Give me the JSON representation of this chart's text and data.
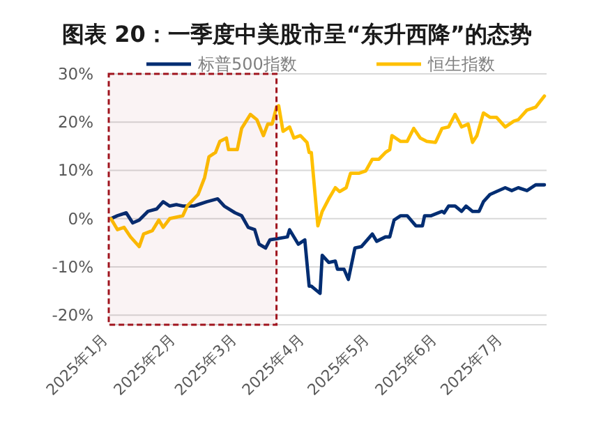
{
  "chart_data": {
    "type": "line",
    "title": "图表 20：一季度中美股市呈“东升西降”的态势",
    "xlim": [
      "2025-01-01",
      "2025-07-21"
    ],
    "ylim": [
      -22,
      30
    ],
    "xticks": [
      {
        "value": "2025-01-01",
        "label": "2025年1月"
      },
      {
        "value": "2025-02-01",
        "label": "2025年2月"
      },
      {
        "value": "2025-03-01",
        "label": "2025年3月"
      },
      {
        "value": "2025-04-01",
        "label": "2025年4月"
      },
      {
        "value": "2025-05-01",
        "label": "2025年5月"
      },
      {
        "value": "2025-06-01",
        "label": "2025年6月"
      },
      {
        "value": "2025-07-01",
        "label": "2025年7月"
      }
    ],
    "yticks": [
      {
        "value": -20,
        "label": "-20%"
      },
      {
        "value": -10,
        "label": "-10%"
      },
      {
        "value": 0,
        "label": "0%"
      },
      {
        "value": 10,
        "label": "10%"
      },
      {
        "value": 20,
        "label": "20%"
      },
      {
        "value": 30,
        "label": "30%"
      }
    ],
    "grid": "y",
    "legend": "top",
    "marker": "none",
    "line_style": "solid",
    "bands": [
      {
        "axis": "x",
        "from": "2025-01-01",
        "to": "2025-03-19",
        "color": "#a0141e"
      }
    ],
    "series": [
      {
        "name": "标普500指数",
        "color": "#002d72",
        "x": [
          "2025-01-02",
          "2025-01-05",
          "2025-01-09",
          "2025-01-12",
          "2025-01-15",
          "2025-01-19",
          "2025-01-23",
          "2025-01-26",
          "2025-01-29",
          "2025-02-01",
          "2025-02-04",
          "2025-02-09",
          "2025-02-11",
          "2025-02-15",
          "2025-02-20",
          "2025-02-23",
          "2025-02-28",
          "2025-03-03",
          "2025-03-06",
          "2025-03-09",
          "2025-03-11",
          "2025-03-14",
          "2025-03-16",
          "2025-03-20",
          "2025-03-24",
          "2025-03-25",
          "2025-03-29",
          "2025-04-01",
          "2025-04-03",
          "2025-04-04",
          "2025-04-08",
          "2025-04-09",
          "2025-04-12",
          "2025-04-15",
          "2025-04-16",
          "2025-04-19",
          "2025-04-21",
          "2025-04-24",
          "2025-04-27",
          "2025-05-02",
          "2025-05-04",
          "2025-05-08",
          "2025-05-10",
          "2025-05-12",
          "2025-05-15",
          "2025-05-18",
          "2025-05-22",
          "2025-05-25",
          "2025-05-26",
          "2025-05-29",
          "2025-06-03",
          "2025-06-04",
          "2025-06-06",
          "2025-06-09",
          "2025-06-12",
          "2025-06-14",
          "2025-06-17",
          "2025-06-20",
          "2025-06-22",
          "2025-06-25",
          "2025-06-28",
          "2025-07-02",
          "2025-07-05",
          "2025-07-08",
          "2025-07-12",
          "2025-07-16",
          "2025-07-20"
        ],
        "values": [
          0,
          0.6,
          1.2,
          -0.9,
          -0.3,
          1.5,
          2,
          3.5,
          2.6,
          2.9,
          2.6,
          2.6,
          2.9,
          3.5,
          4.1,
          2.6,
          1.2,
          0.6,
          -1.8,
          -2.3,
          -5.3,
          -6.1,
          -4.4,
          -4.1,
          -3.8,
          -2.3,
          -5.3,
          -4.4,
          -14,
          -14,
          -15.5,
          -7.6,
          -9.1,
          -8.8,
          -10.5,
          -10.5,
          -12.6,
          -6.1,
          -5.8,
          -3.2,
          -4.7,
          -3.8,
          -3.8,
          -0.3,
          0.6,
          0.6,
          -1.5,
          -1.5,
          0.6,
          0.6,
          1.5,
          1.2,
          2.6,
          2.6,
          1.5,
          2.6,
          1.5,
          1.5,
          3.5,
          5,
          5.6,
          6.4,
          5.8,
          6.4,
          5.8,
          7,
          7
        ]
      },
      {
        "name": "恒生指数",
        "color": "#ffc000",
        "x": [
          "2025-01-02",
          "2025-01-05",
          "2025-01-08",
          "2025-01-11",
          "2025-01-15",
          "2025-01-17",
          "2025-01-21",
          "2025-01-24",
          "2025-01-26",
          "2025-01-29",
          "2025-02-04",
          "2025-02-06",
          "2025-02-11",
          "2025-02-14",
          "2025-02-16",
          "2025-02-19",
          "2025-02-21",
          "2025-02-24",
          "2025-02-25",
          "2025-03-01",
          "2025-03-03",
          "2025-03-07",
          "2025-03-10",
          "2025-03-13",
          "2025-03-15",
          "2025-03-17",
          "2025-03-19",
          "2025-03-20",
          "2025-03-22",
          "2025-03-25",
          "2025-03-27",
          "2025-03-30",
          "2025-04-02",
          "2025-04-03",
          "2025-04-04",
          "2025-04-07",
          "2025-04-09",
          "2025-04-12",
          "2025-04-15",
          "2025-04-17",
          "2025-04-20",
          "2025-04-22",
          "2025-04-26",
          "2025-04-29",
          "2025-05-02",
          "2025-05-05",
          "2025-05-08",
          "2025-05-10",
          "2025-05-11",
          "2025-05-15",
          "2025-05-18",
          "2025-05-21",
          "2025-05-24",
          "2025-05-27",
          "2025-05-31",
          "2025-06-03",
          "2025-06-06",
          "2025-06-09",
          "2025-06-12",
          "2025-06-15",
          "2025-06-17",
          "2025-06-19",
          "2025-06-22",
          "2025-06-25",
          "2025-06-28",
          "2025-07-02",
          "2025-07-06",
          "2025-07-08",
          "2025-07-12",
          "2025-07-16",
          "2025-07-20"
        ],
        "values": [
          0,
          -2.3,
          -1.8,
          -3.8,
          -5.8,
          -3.2,
          -2.5,
          -0.3,
          -1.8,
          0,
          0.6,
          2.6,
          5,
          8.5,
          12.8,
          13.7,
          16,
          16.7,
          14.3,
          14.3,
          18.7,
          21.6,
          20.5,
          17.2,
          19.6,
          19.6,
          23.1,
          23.4,
          18.1,
          19,
          16.7,
          17.2,
          15.8,
          13.7,
          13.7,
          -1.5,
          1.5,
          4.1,
          6.4,
          5.6,
          6.4,
          9.4,
          9.4,
          9.9,
          12.3,
          12.3,
          13.7,
          14.3,
          17.2,
          16,
          16,
          18.7,
          16.7,
          16,
          15.8,
          18.7,
          19,
          21.6,
          19,
          19.6,
          15.8,
          17.2,
          21.9,
          21,
          21,
          19,
          20.2,
          20.5,
          22.5,
          23.1,
          25.4
        ]
      }
    ]
  }
}
